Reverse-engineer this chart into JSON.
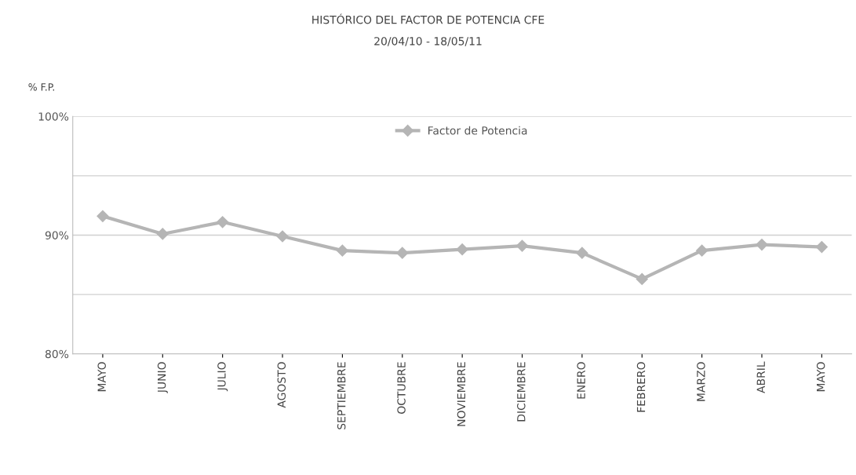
{
  "chart_data": {
    "type": "line",
    "title": "HISTÓRICO DEL FACTOR DE POTENCIA CFE",
    "subtitle": "20/04/10 - 18/05/11",
    "ylabel": "% F.P.",
    "categories": [
      "MAYO",
      "JUNIO",
      "JULIO",
      "AGOSTO",
      "SEPTIEMBRE",
      "OCTUBRE",
      "NOVIEMBRE",
      "DICIEMBRE",
      "ENERO",
      "FEBRERO",
      "MARZO",
      "ABRIL",
      "MAYO"
    ],
    "series": [
      {
        "name": "Factor de Potencia",
        "color": "#b5b5b5",
        "values": [
          91.6,
          90.1,
          91.1,
          89.9,
          88.7,
          88.5,
          88.8,
          89.1,
          88.5,
          86.3,
          88.7,
          89.2,
          89.0
        ]
      }
    ],
    "ylim": [
      80,
      100
    ],
    "yticks": [
      {
        "value": 80,
        "label": "80%"
      },
      {
        "value": 85,
        "label": null
      },
      {
        "value": 90,
        "label": "90%"
      },
      {
        "value": 95,
        "label": null
      },
      {
        "value": 100,
        "label": "100%"
      }
    ],
    "grid": "y",
    "legend": "top",
    "marker": "diamond",
    "line_style": "solid"
  }
}
